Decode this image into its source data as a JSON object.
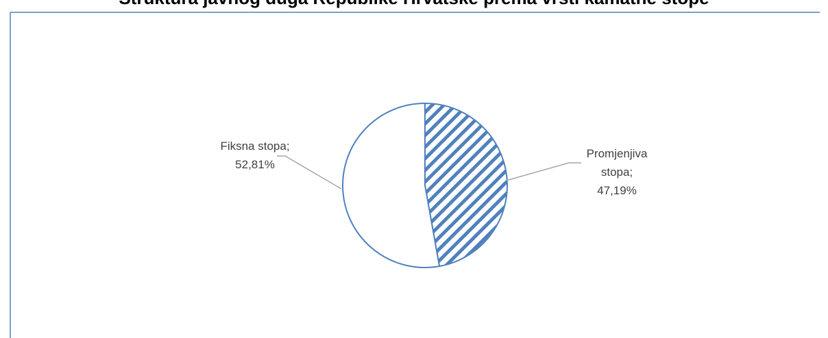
{
  "chart_data": {
    "type": "pie",
    "title": "Struktura javnog duga Republike Hrvatske prema vrsti kamatne stope",
    "slices": [
      {
        "name": "Promjenjiva stopa",
        "value": 47.19,
        "label_lines": [
          "Promjenjiva",
          "stopa;",
          "47,19%"
        ],
        "fill": "hatch"
      },
      {
        "name": "Fiksna stopa",
        "value": 52.81,
        "label_lines": [
          "Fiksna stopa;",
          "52,81%"
        ],
        "fill": "#ffffff"
      }
    ],
    "start": "12-o'clock",
    "direction": "clockwise",
    "legend": "none",
    "colors": {
      "outline": "#4f81bd",
      "hatch": "#4f81bd",
      "leader": "#a6a6a6",
      "frame": "#4f81bd"
    }
  }
}
